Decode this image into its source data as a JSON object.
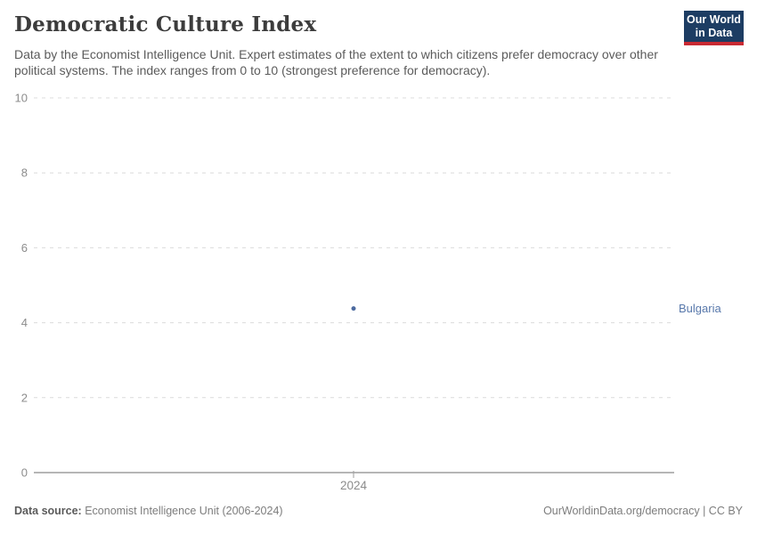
{
  "header": {
    "title": "Democratic Culture Index",
    "subtitle": "Data by the Economist Intelligence Unit. Expert estimates of the extent to which citizens prefer democracy over other political systems. The index ranges from 0 to 10 (strongest preference for democracy).",
    "logo": {
      "line1": "Our World",
      "line2": "in Data"
    }
  },
  "colors": {
    "series_blue": "#4c6a9f",
    "entity_label": "#5878ab",
    "logo_navy": "#1d3d63",
    "logo_red": "#c92a33",
    "gridline": "#dcdcdc",
    "axis_line": "#9e9e9e",
    "tick_label": "#8c8c8c",
    "title_text": "#3c3c3c",
    "subtitle_text": "#5b5b5b",
    "footer_text": "#7d7d7d"
  },
  "chart_data": {
    "type": "scatter",
    "title": "Democratic Culture Index",
    "x": [
      2024
    ],
    "xticks": [
      "2024"
    ],
    "series": [
      {
        "name": "Bulgaria",
        "values": [
          4.38
        ],
        "color": "#4c6a9f"
      }
    ],
    "ylim": [
      0,
      10
    ],
    "yticks": [
      0,
      2,
      4,
      6,
      8,
      10
    ],
    "grid": true,
    "legend_position": "entity-label-right"
  },
  "footer": {
    "source_label": "Data source:",
    "source_value": " Economist Intelligence Unit (2006-2024)",
    "link": "OurWorldinData.org/democracy | CC BY"
  }
}
